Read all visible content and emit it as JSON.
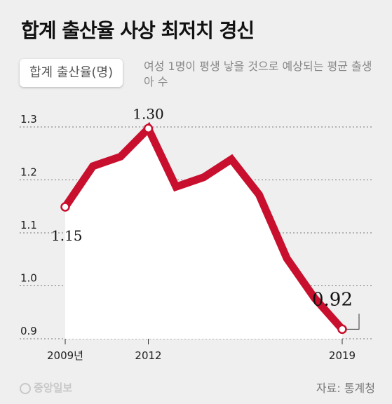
{
  "title": "합계 출산율 사상 최저치 경신",
  "legend": {
    "label": "합계 출산율(명)",
    "description": "여성 1명이 평생 낳을 것으로 예상되는 평균 출생아 수"
  },
  "source": "자료: 통계청",
  "publisher": "중앙일보",
  "colors": {
    "line": "#c8102e",
    "area": "#ffffff",
    "grid": "#777777",
    "background": "#efefef"
  },
  "chart_data": {
    "type": "line",
    "title": "합계 출산율 사상 최저치 경신",
    "ylabel": "합계 출산율(명)",
    "ylim": [
      0.9,
      1.3
    ],
    "yticks": [
      0.9,
      1.0,
      1.1,
      1.2,
      1.3
    ],
    "x": [
      2009,
      2010,
      2011,
      2012,
      2013,
      2014,
      2015,
      2016,
      2017,
      2018,
      2019
    ],
    "xtick_labels": [
      {
        "x": 2009,
        "label": "2009년"
      },
      {
        "x": 2012,
        "label": "2012"
      },
      {
        "x": 2019,
        "label": "2019"
      }
    ],
    "series": [
      {
        "values": [
          1.149,
          1.226,
          1.244,
          1.297,
          1.187,
          1.205,
          1.239,
          1.172,
          1.052,
          0.977,
          0.918
        ]
      }
    ],
    "annotations": [
      {
        "x": 2009,
        "label": "1.15"
      },
      {
        "x": 2012,
        "label": "1.30"
      },
      {
        "x": 2019,
        "label": "0.92"
      }
    ],
    "grid": "horizontal-dashed"
  }
}
